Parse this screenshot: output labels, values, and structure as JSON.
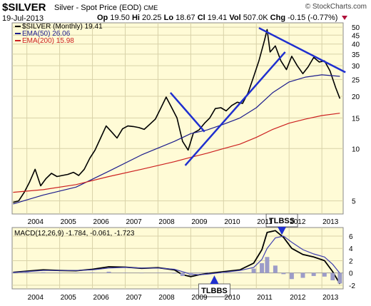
{
  "header": {
    "symbol": "$SILVER",
    "description": "Silver - Spot Price (EOD)",
    "exchange": "CME",
    "site": "© StockCharts.com",
    "date": "19-Jul-2013",
    "open_label": "Op",
    "open": "19.50",
    "high_label": "Hi",
    "high": "20.25",
    "low_label": "Lo",
    "low": "18.67",
    "close_label": "Cl",
    "close": "19.41",
    "volume_label": "Vol",
    "volume": "507.0K",
    "change_label": "Chg",
    "change": "-0.15 (-0.77%)"
  },
  "colors": {
    "plot_bg": "#fffbd6",
    "price": "#000000",
    "ema50": "#1c1c8c",
    "ema200": "#cc2020",
    "trendline": "#1f2fcf",
    "macd": "#000000",
    "signal": "#4040b0",
    "hist": "#9c9cc8",
    "annotation_bg": "#ffffff"
  },
  "chart_data": [
    {
      "type": "line",
      "interval": "monthly",
      "log_scale": true,
      "grid": true,
      "legend_position": "top-left",
      "legend": [
        {
          "label": "$SILVER (Monthly) 19.41",
          "color": "#000000"
        },
        {
          "label": "EMA(50) 26.06",
          "color": "#1c1c8c"
        },
        {
          "label": "EMA(200) 15.98",
          "color": "#cc2020"
        }
      ],
      "x_ticks": [
        "2004",
        "2005",
        "2006",
        "2007",
        "2008",
        "2009",
        "2010",
        "2011",
        "2012",
        "2013"
      ],
      "y_ticks": [
        5,
        10,
        15,
        20,
        25,
        30,
        35,
        40,
        45,
        50
      ],
      "ylim": [
        4.2,
        53
      ],
      "xlim": [
        2003.55,
        2013.65
      ],
      "series": [
        {
          "name": "$SILVER (Monthly)",
          "x": [
            2003.58,
            2003.75,
            2003.92,
            2004.08,
            2004.25,
            2004.42,
            2004.58,
            2004.75,
            2004.92,
            2005.08,
            2005.25,
            2005.42,
            2005.58,
            2005.75,
            2005.92,
            2006.08,
            2006.25,
            2006.42,
            2006.58,
            2006.75,
            2006.92,
            2007.08,
            2007.25,
            2007.42,
            2007.58,
            2007.75,
            2007.92,
            2008.08,
            2008.25,
            2008.42,
            2008.58,
            2008.75,
            2008.92,
            2009.08,
            2009.25,
            2009.42,
            2009.58,
            2009.75,
            2009.92,
            2010.08,
            2010.25,
            2010.42,
            2010.58,
            2010.75,
            2010.92,
            2011.08,
            2011.25,
            2011.33,
            2011.42,
            2011.58,
            2011.75,
            2011.92,
            2012.08,
            2012.25,
            2012.42,
            2012.58,
            2012.75,
            2012.92,
            2013.08,
            2013.25,
            2013.42,
            2013.55
          ],
          "values": [
            4.9,
            5.0,
            5.6,
            6.4,
            7.6,
            6.1,
            6.7,
            7.2,
            6.9,
            7.0,
            7.1,
            7.3,
            7.0,
            7.6,
            8.8,
            9.8,
            11.5,
            13.5,
            12.5,
            11.5,
            13.0,
            13.5,
            13.4,
            13.2,
            12.9,
            13.8,
            14.8,
            17.0,
            19.8,
            17.2,
            15.0,
            11.0,
            9.8,
            12.3,
            12.8,
            14.0,
            15.0,
            17.0,
            17.2,
            16.5,
            17.7,
            18.5,
            18.2,
            21.0,
            26.0,
            32.0,
            42.0,
            48.5,
            36.0,
            39.0,
            32.0,
            28.5,
            34.0,
            30.0,
            27.0,
            29.5,
            33.5,
            31.5,
            32.0,
            28.0,
            22.5,
            19.41
          ]
        },
        {
          "name": "EMA(50)",
          "x": [
            2003.58,
            2004.5,
            2005.5,
            2006.5,
            2007.5,
            2008.5,
            2009.0,
            2009.5,
            2010.0,
            2010.5,
            2011.0,
            2011.5,
            2012.0,
            2012.5,
            2013.0,
            2013.55
          ],
          "values": [
            4.8,
            5.4,
            6.0,
            7.4,
            9.2,
            11.0,
            12.2,
            12.8,
            13.8,
            15.0,
            17.2,
            21.0,
            24.2,
            25.8,
            26.6,
            26.06
          ]
        },
        {
          "name": "EMA(200)",
          "x": [
            2003.58,
            2004.5,
            2005.5,
            2006.5,
            2007.5,
            2008.5,
            2009.0,
            2009.5,
            2010.0,
            2010.5,
            2011.0,
            2011.5,
            2012.0,
            2012.5,
            2013.0,
            2013.55
          ],
          "values": [
            5.6,
            5.8,
            6.2,
            6.9,
            7.6,
            8.4,
            8.9,
            9.4,
            10.0,
            10.6,
            11.6,
            12.9,
            14.0,
            14.8,
            15.5,
            15.98
          ]
        },
        {
          "name": "trendline-a",
          "x": [
            2008.38,
            2009.42
          ],
          "values": [
            21.0,
            12.5
          ]
        },
        {
          "name": "trendline-b",
          "x": [
            2008.83,
            2011.88
          ],
          "values": [
            8.0,
            36.0
          ]
        },
        {
          "name": "trendline-c",
          "x": [
            2011.08,
            2013.72
          ],
          "values": [
            49.5,
            27.5
          ]
        }
      ]
    },
    {
      "type": "line",
      "legend": [
        {
          "label": "MACD(12,26,9) -1.784, -0.061, -1.723",
          "color": "#000000"
        }
      ],
      "x_ticks": [
        "2004",
        "2005",
        "2006",
        "2007",
        "2008",
        "2009",
        "2010",
        "2011",
        "2012",
        "2013"
      ],
      "y_ticks": [
        -2,
        0,
        2,
        4,
        6
      ],
      "ylim": [
        -2.6,
        7.4
      ],
      "xlim": [
        2003.55,
        2013.65
      ],
      "annotations": [
        {
          "text": "TLBBS",
          "x": 2009.72,
          "y": -1.6
        },
        {
          "text": "TLBSS",
          "x": 2011.78,
          "y": 6.9
        }
      ],
      "series": [
        {
          "name": "MACD",
          "x": [
            2003.58,
            2004.0,
            2004.5,
            2005.0,
            2005.5,
            2006.0,
            2006.5,
            2007.0,
            2007.5,
            2008.0,
            2008.5,
            2008.75,
            2009.0,
            2009.25,
            2009.5,
            2010.0,
            2010.5,
            2010.92,
            2011.17,
            2011.33,
            2011.58,
            2011.83,
            2012.08,
            2012.42,
            2012.75,
            2013.08,
            2013.33,
            2013.55
          ],
          "values": [
            0.1,
            0.3,
            0.5,
            0.4,
            0.35,
            0.6,
            1.0,
            0.95,
            0.75,
            0.85,
            0.5,
            -0.3,
            -0.6,
            -0.3,
            -0.1,
            0.2,
            0.5,
            1.6,
            3.8,
            6.6,
            6.9,
            5.8,
            4.0,
            3.0,
            2.6,
            2.0,
            0.2,
            -1.784
          ]
        },
        {
          "name": "Signal",
          "x": [
            2003.58,
            2004.0,
            2004.5,
            2005.0,
            2005.5,
            2006.0,
            2006.5,
            2007.0,
            2007.5,
            2008.0,
            2008.5,
            2008.75,
            2009.0,
            2009.25,
            2009.5,
            2010.0,
            2010.5,
            2010.92,
            2011.17,
            2011.33,
            2011.58,
            2011.83,
            2012.08,
            2012.42,
            2012.75,
            2013.08,
            2013.33,
            2013.55
          ],
          "values": [
            0.1,
            0.2,
            0.4,
            0.4,
            0.4,
            0.5,
            0.8,
            0.9,
            0.8,
            0.8,
            0.6,
            0.2,
            -0.2,
            -0.3,
            -0.2,
            0.1,
            0.4,
            0.9,
            2.2,
            4.0,
            5.7,
            6.0,
            5.0,
            3.8,
            3.1,
            2.6,
            1.4,
            -0.061
          ]
        },
        {
          "name": "Histogram",
          "x": [
            2003.58,
            2004.0,
            2004.5,
            2005.0,
            2005.5,
            2006.0,
            2006.5,
            2007.0,
            2007.5,
            2008.0,
            2008.5,
            2008.75,
            2009.0,
            2009.25,
            2009.5,
            2010.0,
            2010.5,
            2010.92,
            2011.17,
            2011.33,
            2011.58,
            2011.83,
            2012.08,
            2012.42,
            2012.75,
            2013.08,
            2013.33,
            2013.55
          ],
          "values": [
            0.0,
            0.1,
            0.1,
            0.0,
            -0.05,
            0.1,
            0.2,
            0.05,
            -0.05,
            0.05,
            -0.1,
            -0.5,
            -0.4,
            0.0,
            0.1,
            0.1,
            0.1,
            0.7,
            1.6,
            2.6,
            1.2,
            -0.2,
            -1.0,
            -0.8,
            -0.5,
            -0.6,
            -1.2,
            -1.723
          ]
        }
      ]
    }
  ]
}
